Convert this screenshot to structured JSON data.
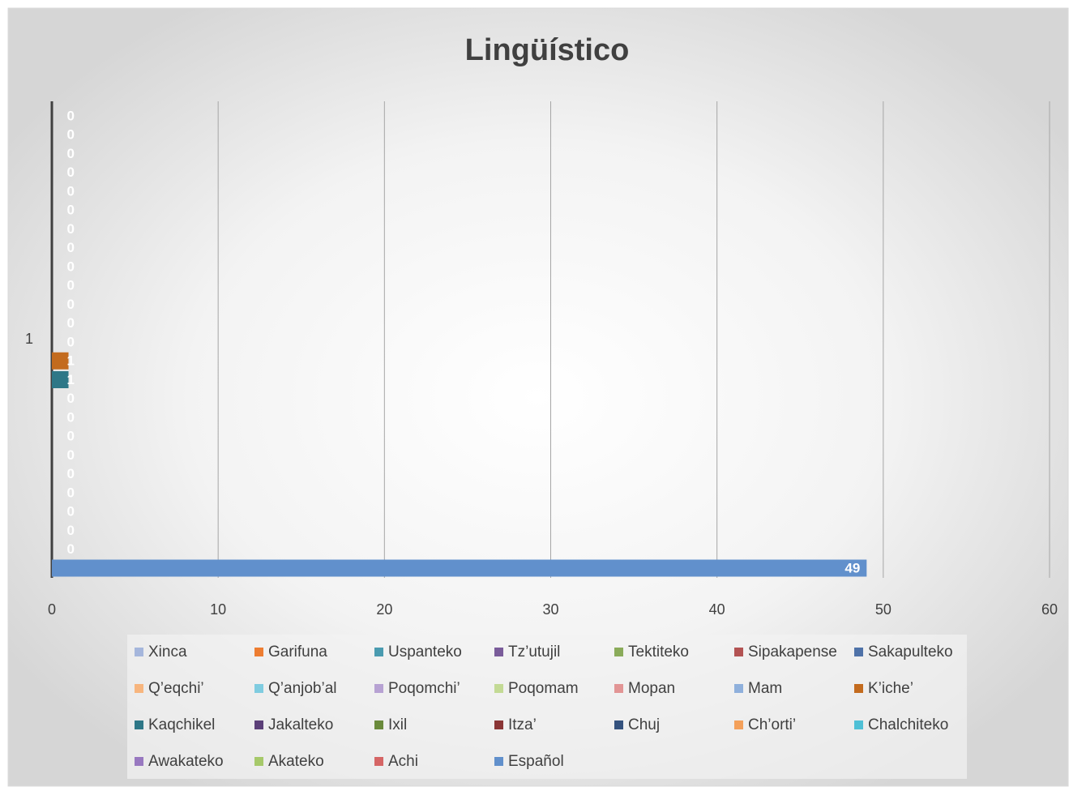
{
  "chart_data": {
    "type": "bar",
    "orientation": "horizontal",
    "title": "Lingüístico",
    "categories": [
      "1"
    ],
    "xlim": [
      0,
      60
    ],
    "xticks": [
      0,
      10,
      20,
      30,
      40,
      50,
      60
    ],
    "grid": true,
    "legend": "bottom",
    "series": [
      {
        "name": "Xinca",
        "color": "#a5b6dc",
        "values": [
          0
        ]
      },
      {
        "name": "Garifuna",
        "color": "#ed7d31",
        "values": [
          0
        ]
      },
      {
        "name": "Uspanteko",
        "color": "#4a9bb0",
        "values": [
          0
        ]
      },
      {
        "name": "Tz’utujil",
        "color": "#7a5c9a",
        "values": [
          0
        ]
      },
      {
        "name": "Tektiteko",
        "color": "#8aab5a",
        "values": [
          0
        ]
      },
      {
        "name": "Sipakapense",
        "color": "#b35353",
        "values": [
          0
        ]
      },
      {
        "name": "Sakapulteko",
        "color": "#4f72a8",
        "values": [
          0
        ]
      },
      {
        "name": "Q’eqchi’",
        "color": "#f7b57e",
        "values": [
          0
        ]
      },
      {
        "name": "Q’anjob’al",
        "color": "#7fcce0",
        "values": [
          0
        ]
      },
      {
        "name": "Poqomchi’",
        "color": "#b7a2d3",
        "values": [
          0
        ]
      },
      {
        "name": "Poqomam",
        "color": "#c3da95",
        "values": [
          0
        ]
      },
      {
        "name": "Mopan",
        "color": "#e29595",
        "values": [
          0
        ]
      },
      {
        "name": "Mam",
        "color": "#8fb0dc",
        "values": [
          0
        ]
      },
      {
        "name": "K’iche’",
        "color": "#c36b1e",
        "values": [
          1
        ]
      },
      {
        "name": "Kaqchikel",
        "color": "#2e7787",
        "values": [
          1
        ]
      },
      {
        "name": "Jakalteko",
        "color": "#5b3f78",
        "values": [
          0
        ]
      },
      {
        "name": "Ixil",
        "color": "#6a8a3b",
        "values": [
          0
        ]
      },
      {
        "name": "Itza’",
        "color": "#8a3535",
        "values": [
          0
        ]
      },
      {
        "name": "Chuj",
        "color": "#34527e",
        "values": [
          0
        ]
      },
      {
        "name": "Ch’orti’",
        "color": "#f4a05a",
        "values": [
          0
        ]
      },
      {
        "name": "Chalchiteko",
        "color": "#4fc0d6",
        "values": [
          0
        ]
      },
      {
        "name": "Awakateko",
        "color": "#9878c0",
        "values": [
          0
        ]
      },
      {
        "name": "Akateko",
        "color": "#a6c96a",
        "values": [
          0
        ]
      },
      {
        "name": "Achi",
        "color": "#d56565",
        "values": [
          0
        ]
      },
      {
        "name": "Español",
        "color": "#6190cc",
        "values": [
          49
        ]
      }
    ]
  }
}
